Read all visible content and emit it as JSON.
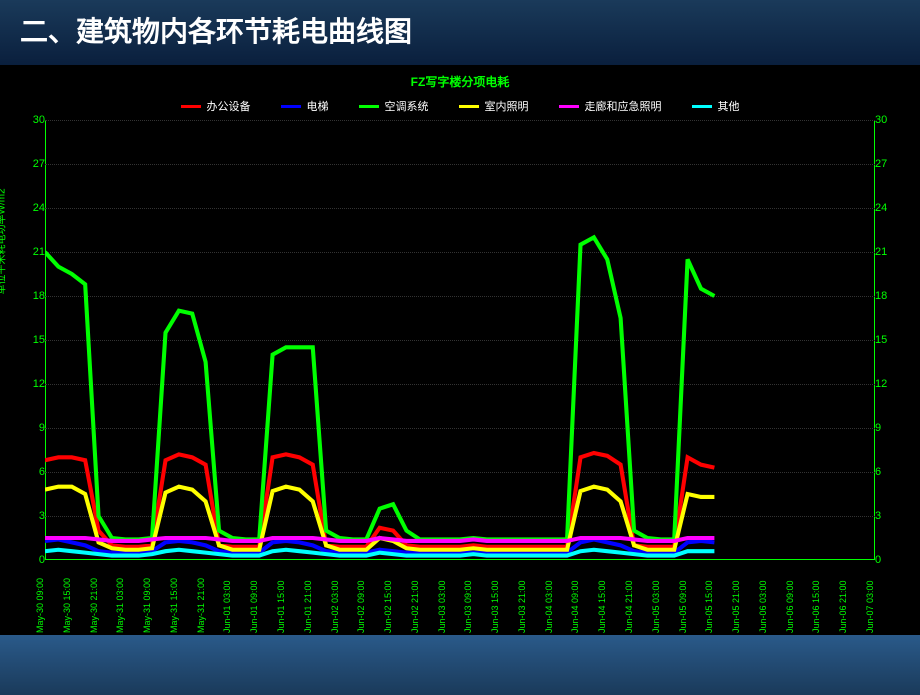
{
  "page_title": "二、建筑物内各环节耗电曲线图",
  "chart": {
    "title": "FZ写字楼分项电耗",
    "title_color": "#00ff00",
    "background": "#000000",
    "axis_color": "#00ff00",
    "tick_color": "#00ff00",
    "grid_color": "#333333",
    "y_label": "单位平米耗电功率W/m2",
    "ylim": [
      0,
      30
    ],
    "ylim_right": [
      0,
      30
    ],
    "yticks": [
      0,
      3,
      6,
      9,
      12,
      15,
      18,
      21,
      24,
      27,
      30
    ],
    "xticks": [
      "May-30 09:00",
      "May-30 15:00",
      "May-30 21:00",
      "May-31 03:00",
      "May-31 09:00",
      "May-31 15:00",
      "May-31 21:00",
      "Jun-01 03:00",
      "Jun-01 09:00",
      "Jun-01 15:00",
      "Jun-01 21:00",
      "Jun-02 03:00",
      "Jun-02 09:00",
      "Jun-02 15:00",
      "Jun-02 21:00",
      "Jun-03 03:00",
      "Jun-03 09:00",
      "Jun-03 15:00",
      "Jun-03 21:00",
      "Jun-04 03:00",
      "Jun-04 09:00",
      "Jun-04 15:00",
      "Jun-04 21:00",
      "Jun-05 03:00",
      "Jun-05 09:00",
      "Jun-05 15:00",
      "Jun-05 21:00",
      "Jun-06 03:00",
      "Jun-06 09:00",
      "Jun-06 15:00",
      "Jun-06 21:00",
      "Jun-07 03:00"
    ],
    "x_data_end_index": 25,
    "line_width": 1.8,
    "series": [
      {
        "name": "办公设备",
        "color": "#ff0000",
        "values": [
          6.8,
          7.0,
          7.0,
          6.8,
          2.0,
          1.0,
          0.9,
          0.9,
          1.0,
          6.8,
          7.2,
          7.0,
          6.5,
          1.0,
          0.9,
          0.9,
          0.9,
          7.0,
          7.2,
          7.0,
          6.5,
          1.0,
          0.9,
          0.9,
          0.9,
          2.2,
          2.0,
          1.0,
          0.9,
          0.9,
          0.9,
          0.9,
          1.0,
          0.9,
          0.9,
          0.9,
          0.9,
          0.9,
          0.9,
          0.9,
          7.0,
          7.3,
          7.1,
          6.5,
          1.0,
          0.9,
          0.9,
          0.9,
          7.0,
          6.5,
          6.3
        ]
      },
      {
        "name": "电梯",
        "color": "#0000ff",
        "values": [
          1.3,
          1.4,
          1.2,
          1.0,
          0.6,
          0.5,
          0.5,
          0.5,
          0.6,
          1.2,
          1.3,
          1.2,
          1.0,
          0.6,
          0.5,
          0.5,
          0.5,
          1.2,
          1.3,
          1.2,
          1.0,
          0.6,
          0.5,
          0.5,
          0.5,
          0.7,
          0.6,
          0.5,
          0.5,
          0.5,
          0.5,
          0.5,
          0.5,
          0.5,
          0.5,
          0.5,
          0.5,
          0.5,
          0.5,
          0.5,
          1.2,
          1.4,
          1.2,
          1.0,
          0.6,
          0.5,
          0.5,
          0.5,
          1.2,
          1.3,
          1.2
        ]
      },
      {
        "name": "空调系统",
        "color": "#00ff00",
        "values": [
          21.0,
          20.0,
          19.5,
          18.8,
          3.0,
          1.5,
          1.4,
          1.4,
          1.5,
          15.5,
          17.0,
          16.8,
          13.5,
          2.0,
          1.5,
          1.4,
          1.4,
          14.0,
          14.5,
          14.5,
          14.5,
          2.0,
          1.5,
          1.4,
          1.4,
          3.5,
          3.8,
          2.0,
          1.4,
          1.4,
          1.4,
          1.4,
          1.5,
          1.4,
          1.4,
          1.4,
          1.4,
          1.4,
          1.4,
          1.4,
          21.5,
          22.0,
          20.5,
          16.5,
          2.0,
          1.5,
          1.4,
          1.4,
          20.5,
          18.5,
          18.0
        ]
      },
      {
        "name": "室内照明",
        "color": "#ffff00",
        "values": [
          4.8,
          5.0,
          5.0,
          4.5,
          1.2,
          0.8,
          0.7,
          0.7,
          0.8,
          4.6,
          5.0,
          4.8,
          4.0,
          1.0,
          0.7,
          0.7,
          0.7,
          4.7,
          5.0,
          4.8,
          4.0,
          1.0,
          0.7,
          0.7,
          0.7,
          1.5,
          1.3,
          0.8,
          0.7,
          0.7,
          0.7,
          0.7,
          0.8,
          0.7,
          0.7,
          0.7,
          0.7,
          0.7,
          0.7,
          0.7,
          4.7,
          5.0,
          4.8,
          4.0,
          1.0,
          0.7,
          0.7,
          0.7,
          4.5,
          4.3,
          4.3
        ]
      },
      {
        "name": "走廊和应急照明",
        "color": "#ff00ff",
        "values": [
          1.5,
          1.5,
          1.5,
          1.5,
          1.4,
          1.3,
          1.3,
          1.3,
          1.4,
          1.5,
          1.5,
          1.5,
          1.5,
          1.4,
          1.3,
          1.3,
          1.3,
          1.5,
          1.5,
          1.5,
          1.5,
          1.4,
          1.3,
          1.3,
          1.3,
          1.5,
          1.4,
          1.3,
          1.3,
          1.3,
          1.3,
          1.3,
          1.4,
          1.3,
          1.3,
          1.3,
          1.3,
          1.3,
          1.3,
          1.3,
          1.5,
          1.5,
          1.5,
          1.5,
          1.4,
          1.3,
          1.3,
          1.3,
          1.5,
          1.5,
          1.5
        ]
      },
      {
        "name": "其他",
        "color": "#00ffff",
        "values": [
          0.6,
          0.7,
          0.6,
          0.5,
          0.4,
          0.3,
          0.3,
          0.3,
          0.4,
          0.6,
          0.7,
          0.6,
          0.5,
          0.4,
          0.3,
          0.3,
          0.3,
          0.6,
          0.7,
          0.6,
          0.5,
          0.4,
          0.3,
          0.3,
          0.3,
          0.5,
          0.4,
          0.3,
          0.3,
          0.3,
          0.3,
          0.3,
          0.4,
          0.3,
          0.3,
          0.3,
          0.3,
          0.3,
          0.3,
          0.3,
          0.6,
          0.7,
          0.6,
          0.5,
          0.4,
          0.3,
          0.3,
          0.3,
          0.6,
          0.6,
          0.6
        ]
      }
    ]
  }
}
